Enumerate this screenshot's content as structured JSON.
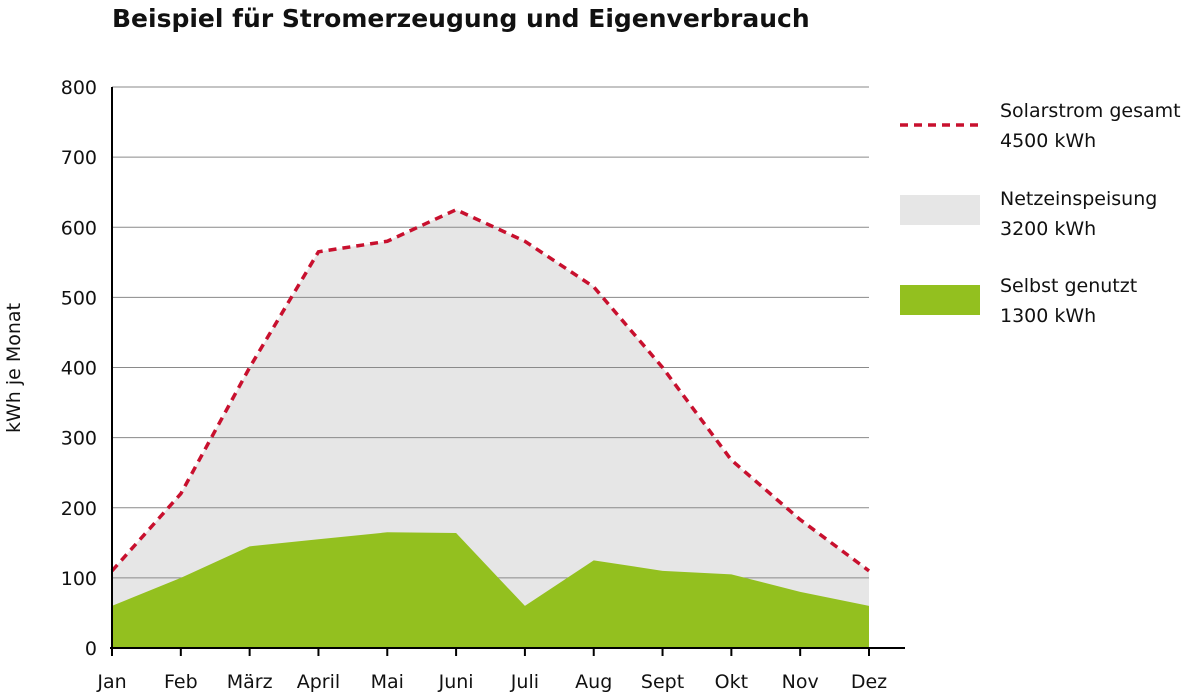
{
  "chart_data": {
    "type": "area",
    "title": "Beispiel für Stromerzeugung und Eigenverbrauch",
    "ylabel": "kWh je Monat",
    "xlabel": "",
    "categories": [
      "Jan",
      "Feb",
      "März",
      "April",
      "Mai",
      "Juni",
      "Juli",
      "Aug",
      "Sept",
      "Okt",
      "Nov",
      "Dez"
    ],
    "ylim": [
      0,
      800
    ],
    "yticks": [
      0,
      100,
      200,
      300,
      400,
      500,
      600,
      700,
      800
    ],
    "grid": true,
    "legend_position": "right",
    "series": [
      {
        "name": "Solarstrom gesamt",
        "total": "4500 kWh",
        "style": "dashed-line",
        "color": "#c8102e",
        "values": [
          110,
          220,
          400,
          565,
          580,
          625,
          580,
          515,
          400,
          268,
          183,
          110
        ]
      },
      {
        "name": "Netzeinspeisung",
        "total": "3200 kWh",
        "style": "area-fill",
        "color": "#e6e6e6"
      },
      {
        "name": "Selbst genutzt",
        "total": "1300 kWh",
        "style": "area-fill",
        "color": "#93c01f",
        "values": [
          60,
          100,
          145,
          155,
          165,
          164,
          60,
          125,
          110,
          105,
          80,
          60
        ]
      }
    ]
  }
}
